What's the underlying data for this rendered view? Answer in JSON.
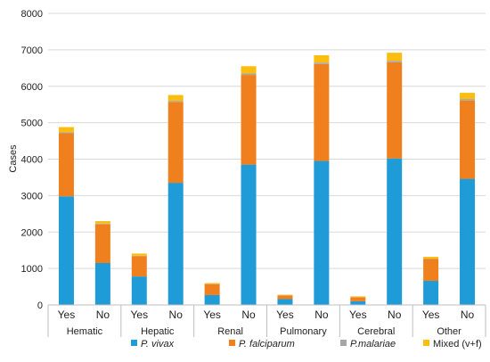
{
  "chart_data": {
    "type": "bar",
    "stacked": true,
    "ylabel": "Cases",
    "ylim": [
      0,
      8000
    ],
    "yticks": [
      "0",
      "1000",
      "2000",
      "3000",
      "4000",
      "5000",
      "6000",
      "7000",
      "8000"
    ],
    "grid": true,
    "legend_position": "bottom",
    "groups": [
      "Hematic",
      "Hepatic",
      "Renal",
      "Pulmonary",
      "Cerebral",
      "Other"
    ],
    "categories": [
      "Yes",
      "No",
      "Yes",
      "No",
      "Yes",
      "No",
      "Yes",
      "No",
      "Yes",
      "No",
      "Yes",
      "No"
    ],
    "series": [
      {
        "name": "P. vivax",
        "italic": true,
        "color": "#1f9bd7",
        "values": [
          2980,
          1150,
          780,
          3350,
          270,
          3850,
          160,
          3950,
          100,
          4020,
          660,
          3460
        ]
      },
      {
        "name": "P. falciparum",
        "italic": true,
        "color": "#f07f1e",
        "values": [
          1730,
          1060,
          560,
          2220,
          300,
          2460,
          100,
          2660,
          110,
          2640,
          600,
          2150
        ]
      },
      {
        "name": "P.malariae",
        "italic": true,
        "color": "#a6a6a6",
        "values": [
          30,
          20,
          10,
          30,
          5,
          40,
          5,
          40,
          5,
          40,
          10,
          40
        ]
      },
      {
        "name": "Mixed (v+f)",
        "italic": false,
        "color": "#fcbe0e",
        "values": [
          140,
          70,
          60,
          160,
          25,
          200,
          15,
          200,
          20,
          220,
          50,
          170
        ]
      }
    ]
  }
}
